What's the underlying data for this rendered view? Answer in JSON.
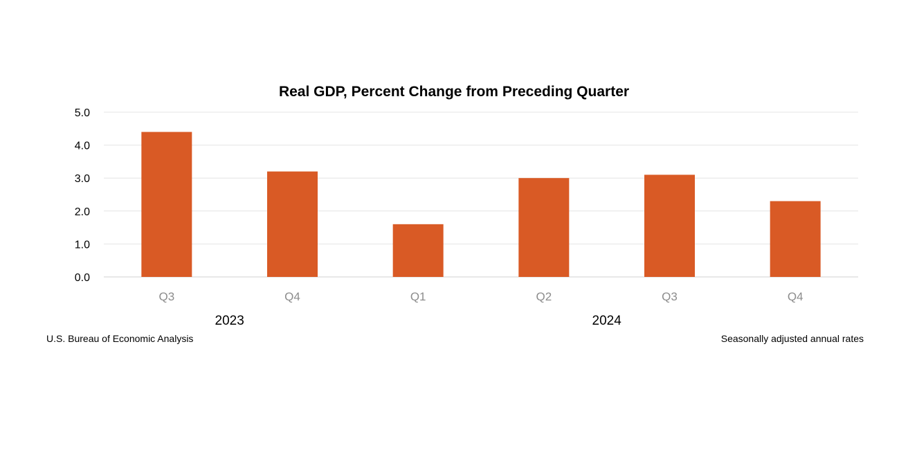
{
  "chart_data": {
    "type": "bar",
    "title": "Real GDP, Percent Change from Preceding Quarter",
    "categories": [
      "Q3",
      "Q4",
      "Q1",
      "Q2",
      "Q3",
      "Q4"
    ],
    "groups": [
      {
        "label": "2023",
        "start": 0,
        "end": 1
      },
      {
        "label": "2024",
        "start": 2,
        "end": 5
      }
    ],
    "values": [
      4.4,
      3.2,
      1.6,
      3.0,
      3.1,
      2.3
    ],
    "ylim": [
      0,
      5
    ],
    "yticks": [
      "0.0",
      "1.0",
      "2.0",
      "3.0",
      "4.0",
      "5.0"
    ],
    "xlabel": "",
    "ylabel": "",
    "grid": true,
    "bar_color": "#d95a25",
    "source": "U.S. Bureau of Economic Analysis",
    "note": "Seasonally adjusted annual rates"
  }
}
